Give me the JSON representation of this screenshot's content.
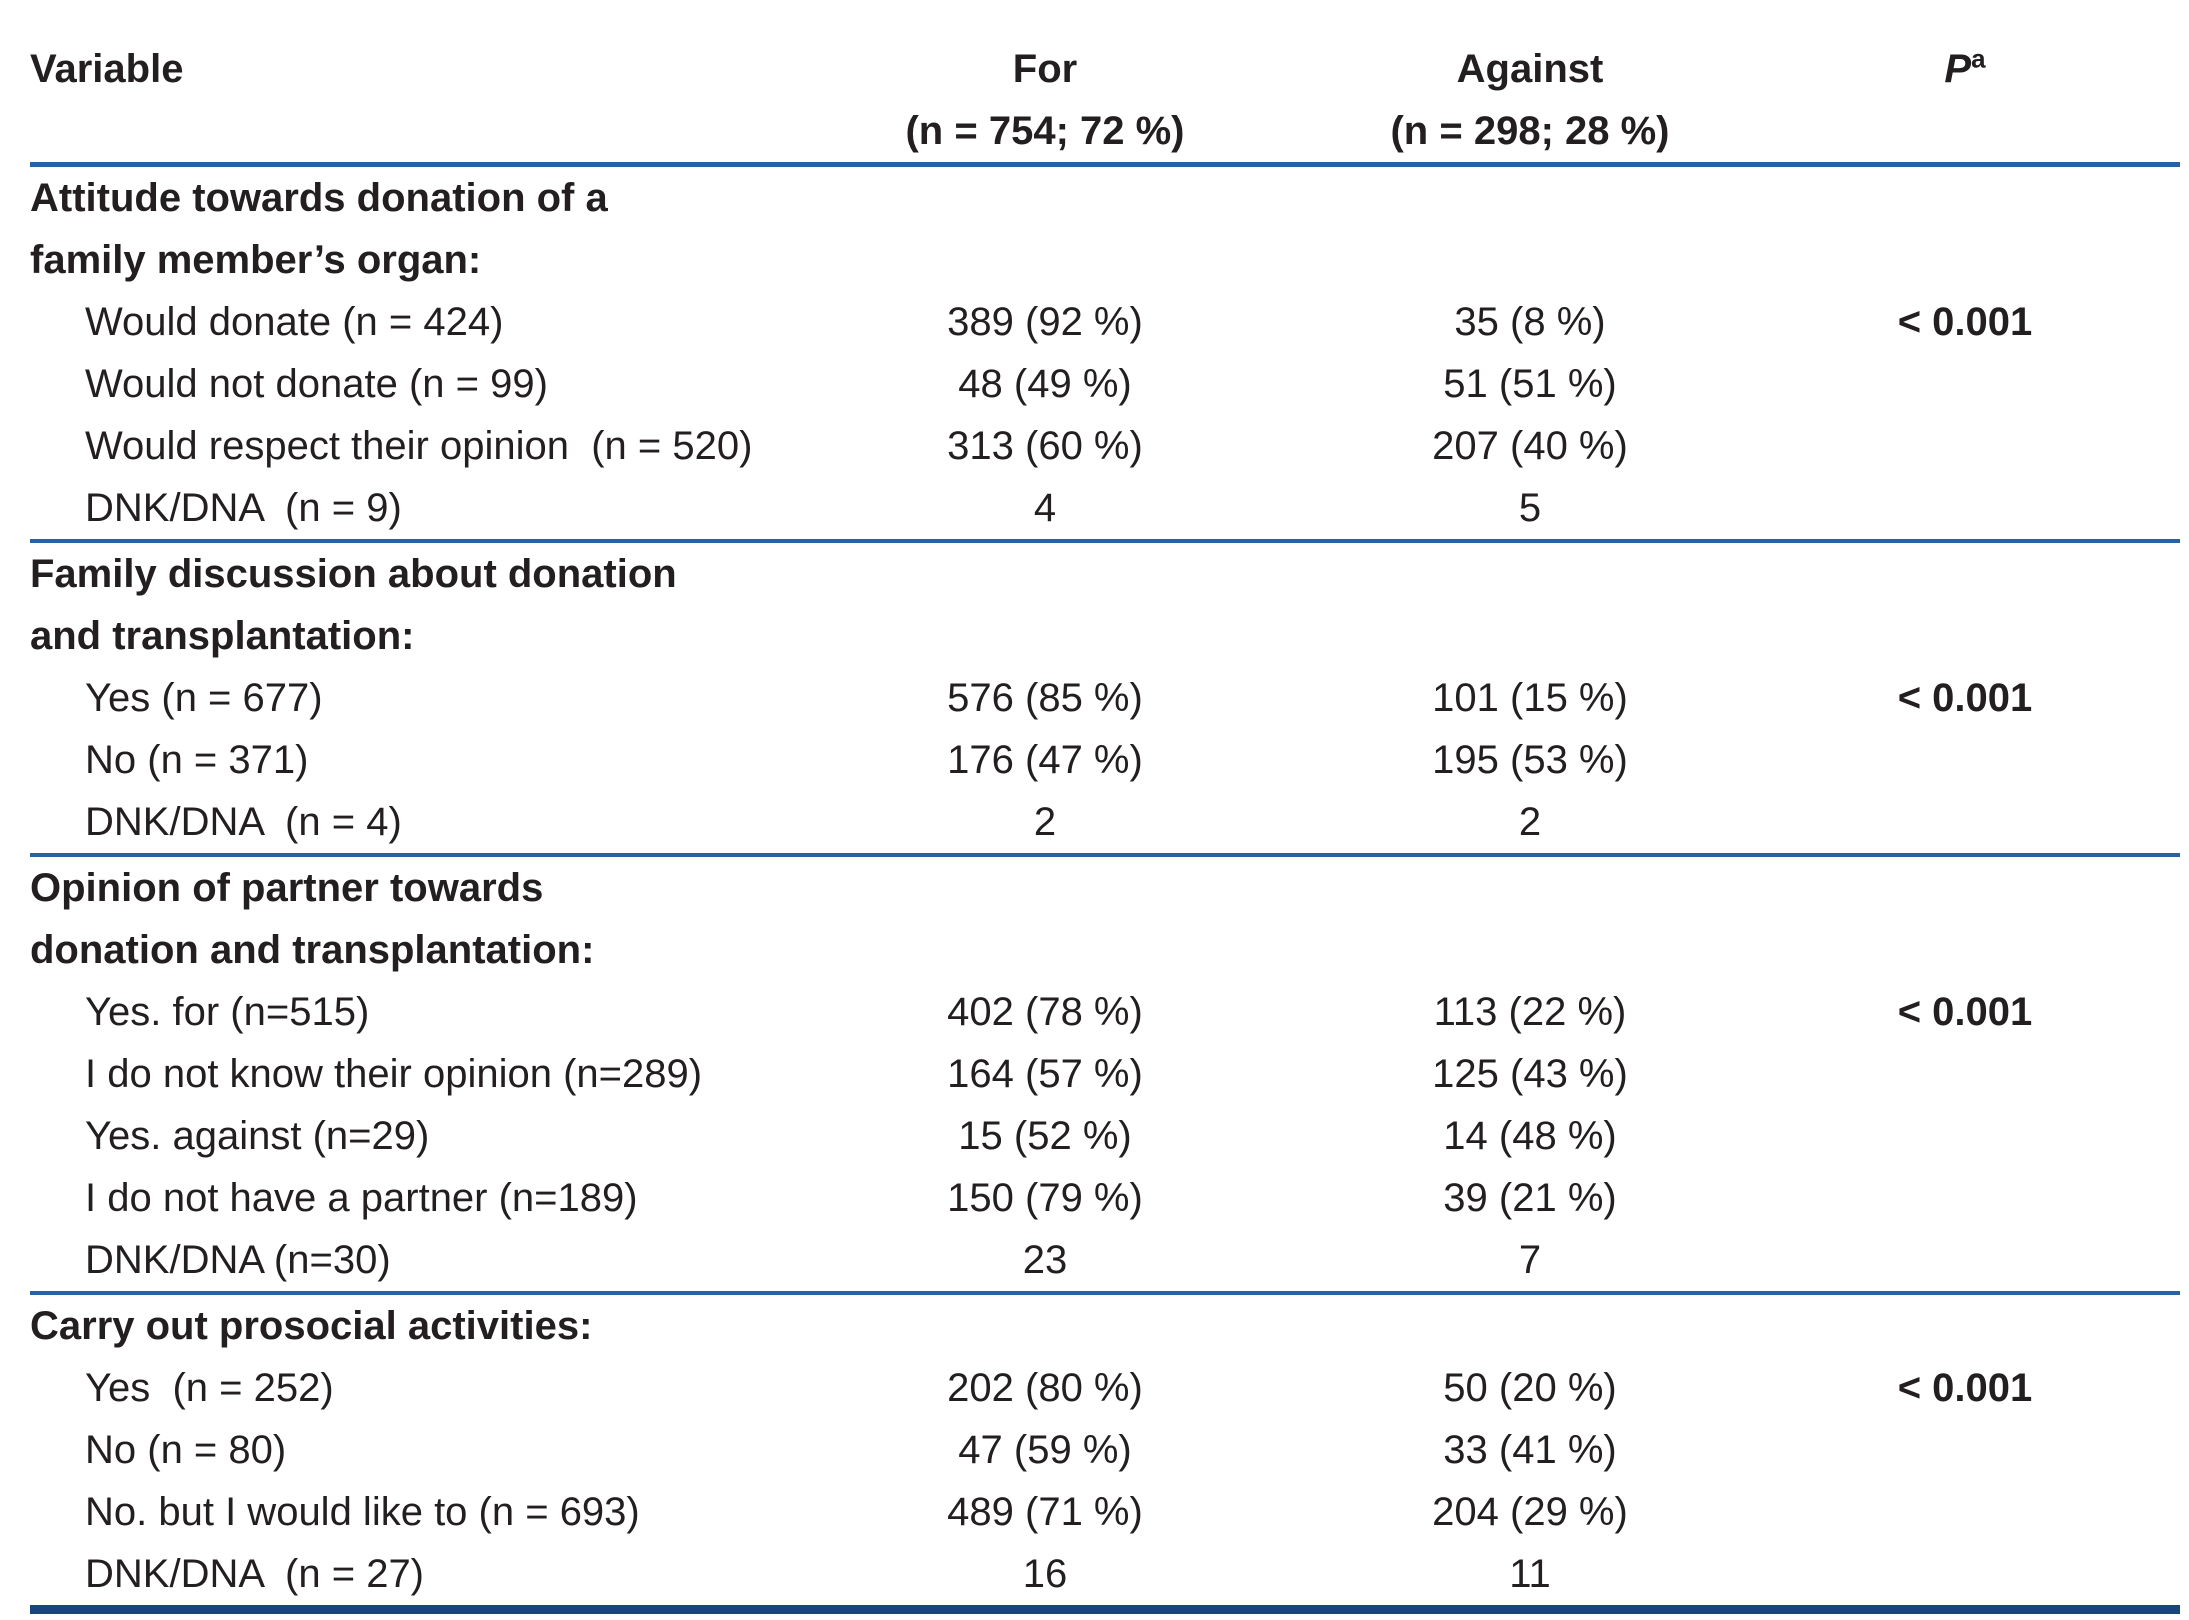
{
  "table": {
    "header": {
      "variable": "Variable",
      "for_label": "For",
      "for_sub": "(n = 754; 72 %)",
      "against_label": "Against",
      "against_sub": "(n = 298; 28 %)",
      "p_label": "P",
      "p_sup": "a"
    },
    "colors": {
      "separator_blue": "#2a61a4",
      "bottom_rule_navy": "#1a4578",
      "text": "#231f20"
    },
    "sections": [
      {
        "title_lines": [
          "Attitude towards donation of a",
          "family member’s organ:"
        ],
        "rows": [
          {
            "label": "Would donate (n = 424)",
            "for": "389 (92 %)",
            "against": "35 (8 %)",
            "p": "< 0.001"
          },
          {
            "label": "Would not donate (n = 99)",
            "for": "48 (49 %)",
            "against": "51 (51 %)",
            "p": ""
          },
          {
            "label": "Would respect their opinion  (n = 520)",
            "for": "313 (60 %)",
            "against": "207 (40 %)",
            "p": ""
          },
          {
            "label": "DNK/DNA  (n = 9)",
            "for": "4",
            "against": "5",
            "p": ""
          }
        ]
      },
      {
        "title_lines": [
          "Family discussion about donation",
          "and transplantation:"
        ],
        "rows": [
          {
            "label": "Yes (n = 677)",
            "for": "576 (85 %)",
            "against": "101 (15 %)",
            "p": "< 0.001"
          },
          {
            "label": "No (n = 371)",
            "for": "176 (47 %)",
            "against": "195 (53 %)",
            "p": ""
          },
          {
            "label": "DNK/DNA  (n = 4)",
            "for": "2",
            "against": "2",
            "p": ""
          }
        ]
      },
      {
        "title_lines": [
          "Opinion of partner towards",
          "donation and transplantation:"
        ],
        "rows": [
          {
            "label": "Yes. for (n=515)",
            "for": "402 (78 %)",
            "against": "113 (22 %)",
            "p": "< 0.001"
          },
          {
            "label": "I do not know their opinion (n=289)",
            "for": "164 (57 %)",
            "against": "125 (43 %)",
            "p": ""
          },
          {
            "label": "Yes. against (n=29)",
            "for": "15 (52 %)",
            "against": "14 (48 %)",
            "p": ""
          },
          {
            "label": "I do not have a partner (n=189)",
            "for": "150 (79 %)",
            "against": "39 (21 %)",
            "p": ""
          },
          {
            "label": "DNK/DNA (n=30)",
            "for": "23",
            "against": "7",
            "p": ""
          }
        ]
      },
      {
        "title_lines": [
          "Carry out prosocial activities:"
        ],
        "rows": [
          {
            "label": "Yes  (n = 252)",
            "for": "202 (80 %)",
            "against": "50 (20 %)",
            "p": "< 0.001"
          },
          {
            "label": "No (n = 80)",
            "for": "47 (59 %)",
            "against": "33 (41 %)",
            "p": ""
          },
          {
            "label": "No. but I would like to (n = 693)",
            "for": "489 (71 %)",
            "against": "204 (29 %)",
            "p": ""
          },
          {
            "label": "DNK/DNA  (n = 27)",
            "for": "16",
            "against": "11",
            "p": ""
          }
        ]
      }
    ]
  }
}
